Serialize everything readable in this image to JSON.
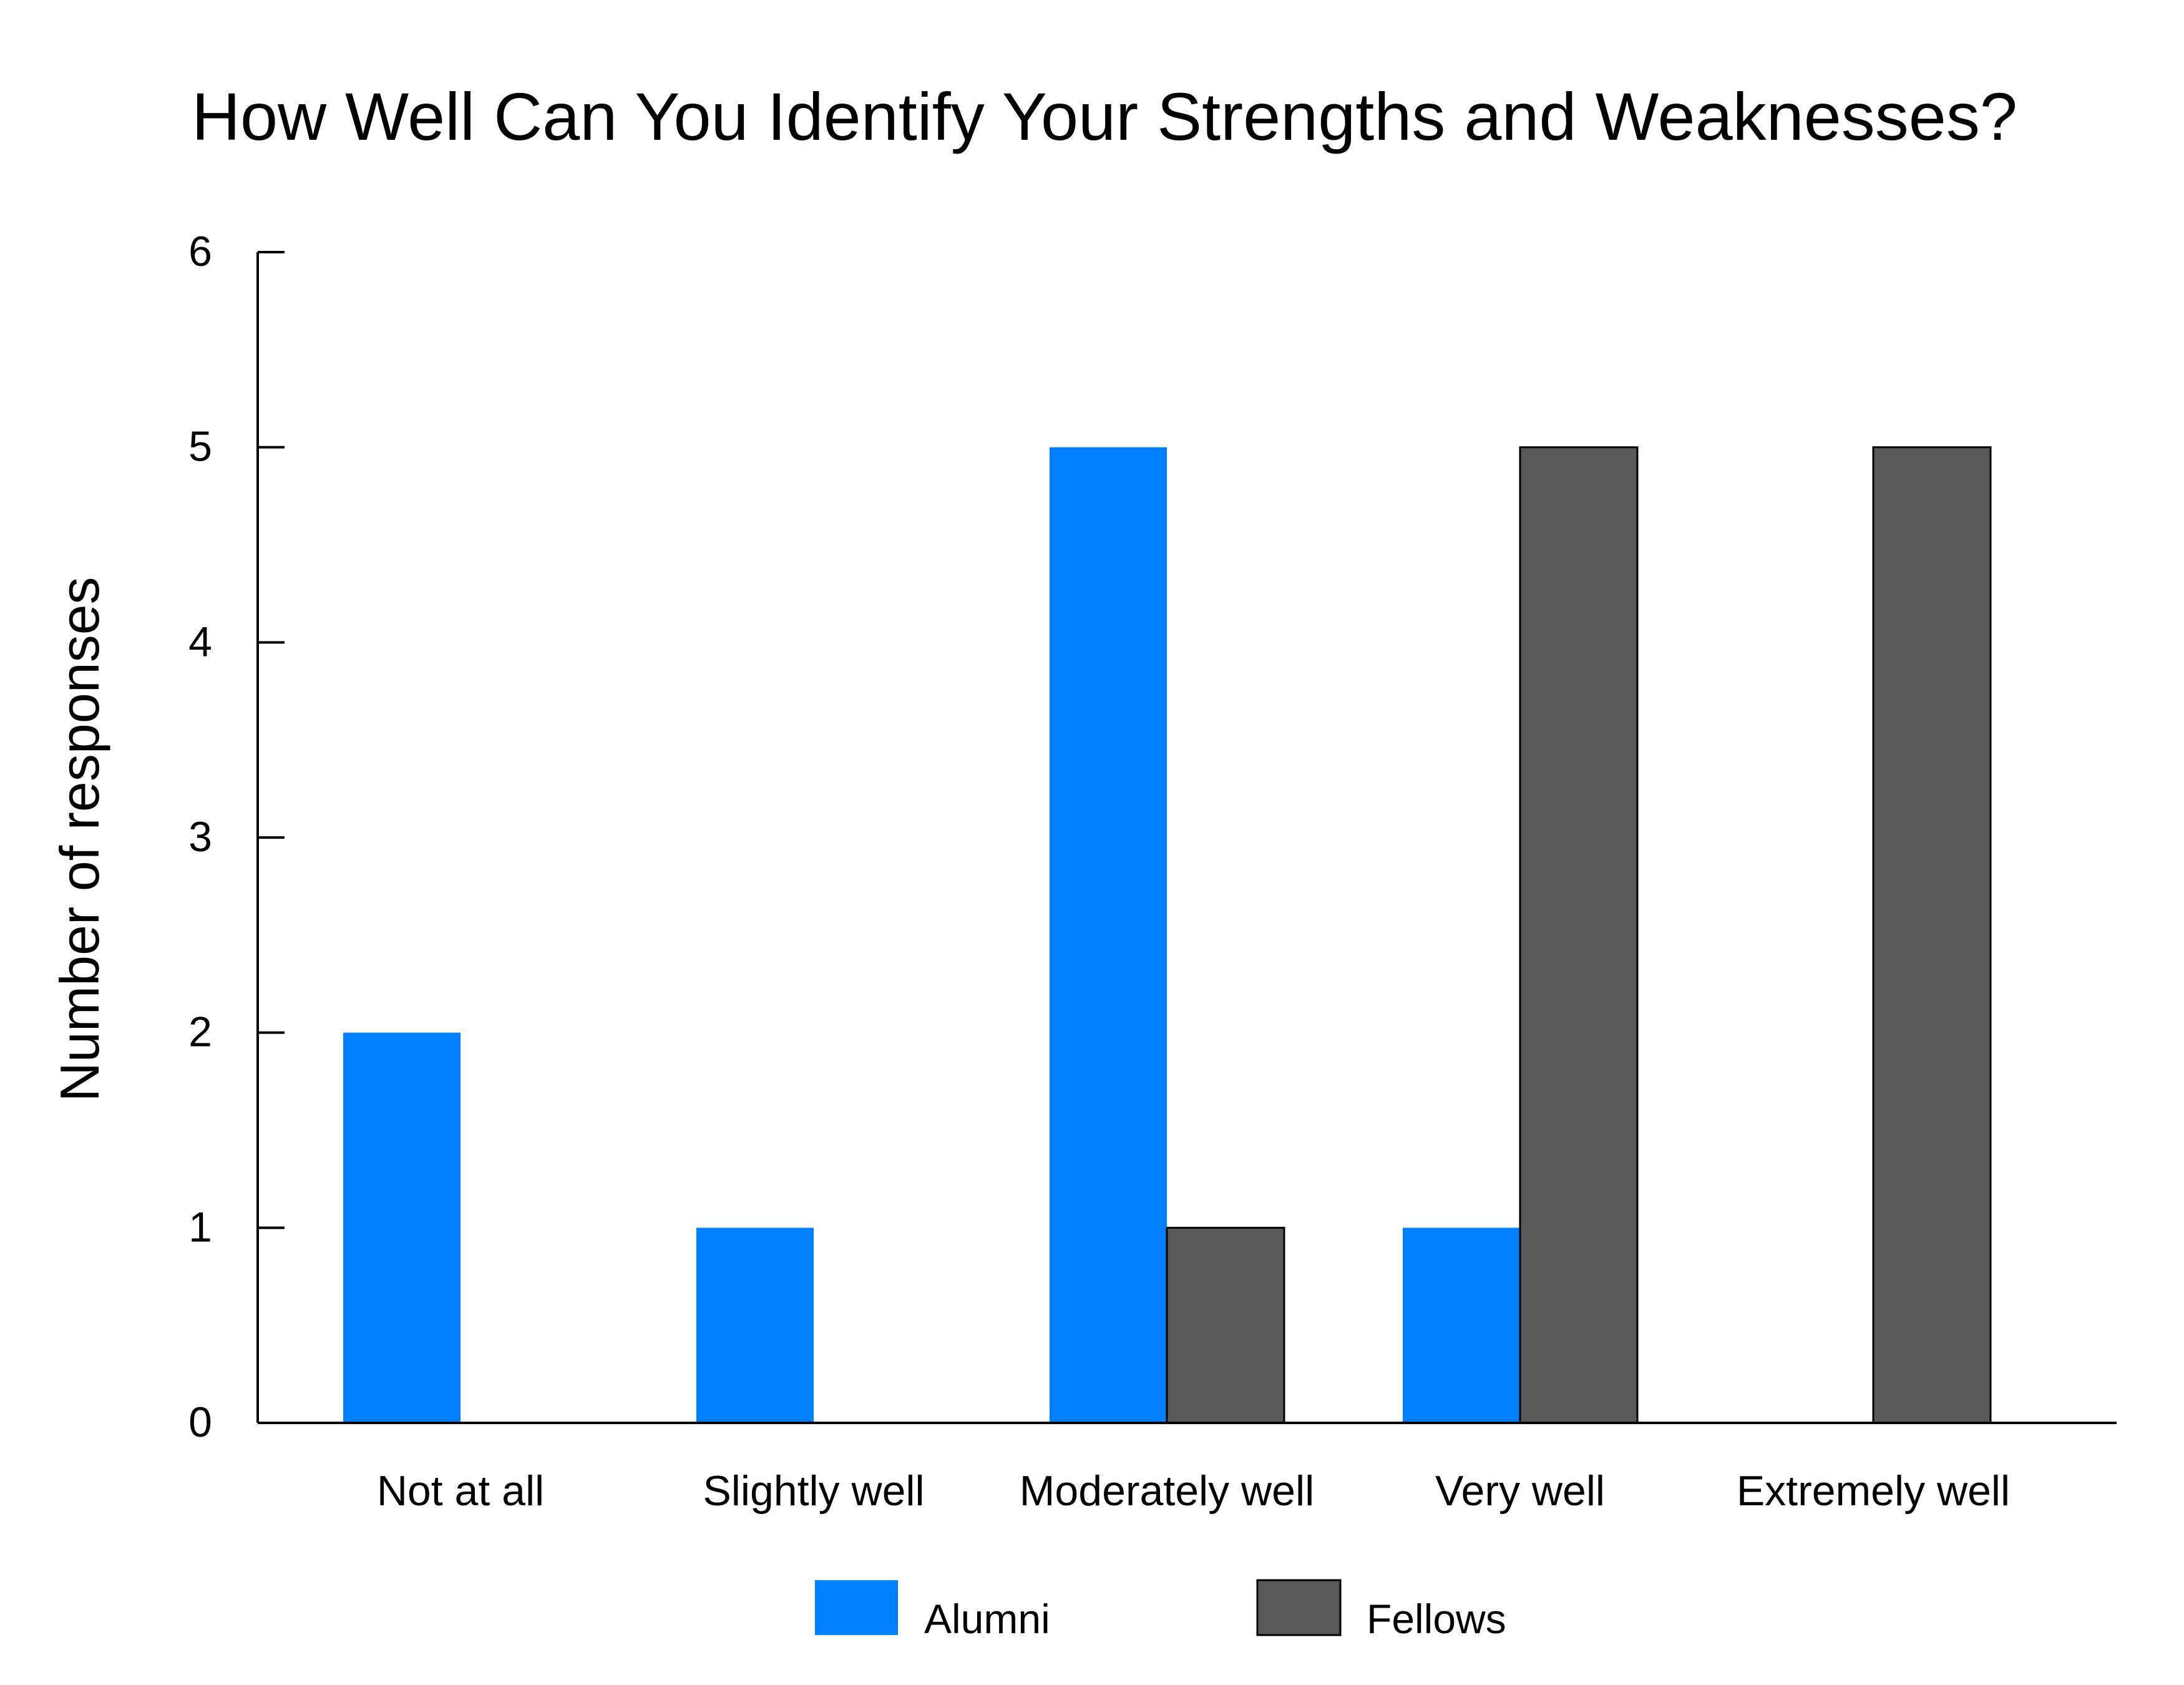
{
  "chart_data": {
    "type": "bar",
    "title": "How Well Can You Identify Your Strengths and Weaknesses?",
    "xlabel": "",
    "ylabel": "Number of responses",
    "categories": [
      "Not at all",
      "Slightly well",
      "Moderately well",
      "Very well",
      "Extremely well"
    ],
    "series": [
      {
        "name": "Alumni",
        "color": "#0080ff",
        "values": [
          2,
          1,
          5,
          1,
          0
        ]
      },
      {
        "name": "Fellows",
        "color": "#595959",
        "values": [
          0,
          0,
          1,
          5,
          5
        ]
      }
    ],
    "ylim": [
      0,
      6
    ],
    "yticks": [
      "0",
      "1",
      "2",
      "3",
      "4",
      "5",
      "6"
    ],
    "grid": false,
    "legend_position": "bottom-center"
  }
}
